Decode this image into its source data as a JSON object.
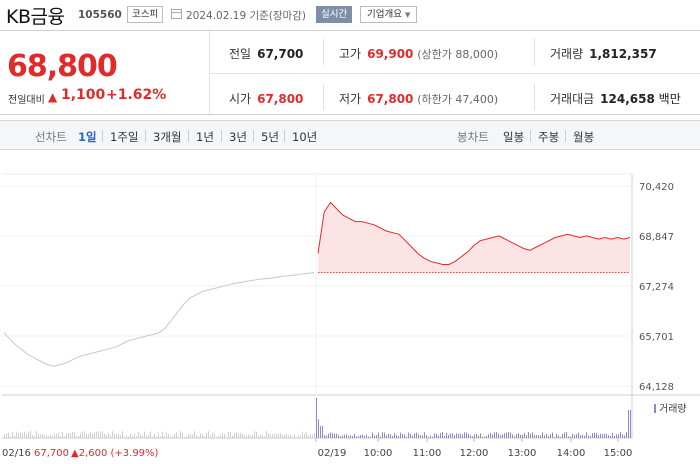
{
  "stock": {
    "name": "KB금융",
    "code": "105560",
    "market": "코스피",
    "date": "2024.02.19",
    "basis": "기준(장마감)",
    "realtime_label": "실시간",
    "company_overview_label": "기업개요"
  },
  "quote": {
    "price": "68,800",
    "change_label": "전일대비",
    "change_arrow": "▲",
    "change_value": "1,100",
    "change_percent": "+1.62%",
    "prev_close_label": "전일",
    "prev_close": "67,700",
    "high_label": "고가",
    "high": "69,900",
    "upper_limit": "(상한가 88,000)",
    "volume_label": "거래량",
    "volume": "1,812,357",
    "open_label": "시가",
    "open": "67,800",
    "low_label": "저가",
    "low": "67,800",
    "lower_limit": "(하한가 47,400)",
    "amount_label": "거래대금",
    "amount": "124,658",
    "amount_unit": "백만"
  },
  "tabs": {
    "line_chart_label": "선차트",
    "periods": [
      "1일",
      "1주일",
      "3개월",
      "1년",
      "3년",
      "5년",
      "10년"
    ],
    "active_period": "1일",
    "candle_chart_label": "봉차트",
    "candle_periods": [
      "일봉",
      "주봉",
      "월봉"
    ]
  },
  "chart_data": {
    "type": "line",
    "y_ticks": [
      "70,420",
      "68,847",
      "67,274",
      "65,701",
      "64,128"
    ],
    "ylim": [
      64128,
      70420
    ],
    "x_ticks": [
      "02/19",
      "10:00",
      "11:00",
      "12:00",
      "13:00",
      "14:00",
      "15:00"
    ],
    "prev_day_label": "02/16",
    "prev_day_close": "67,700",
    "prev_day_change": "▲2,600 (+3.99%)",
    "reference_price": 67700,
    "volume_label": "거래량",
    "colors": {
      "up": "#e12b2b",
      "prev": "#c8c8c8",
      "volume": "#8f86c6",
      "fill": "#fde4e4"
    },
    "series": [
      {
        "session": "02/16",
        "values": [
          65800,
          65600,
          65400,
          65250,
          65100,
          65000,
          64900,
          64800,
          64750,
          64800,
          64850,
          64950,
          65050,
          65100,
          65150,
          65200,
          65250,
          65300,
          65350,
          65450,
          65550,
          65600,
          65650,
          65700,
          65750,
          65800,
          65950,
          66200,
          66450,
          66700,
          66900,
          67000,
          67100,
          67150,
          67200,
          67250,
          67300,
          67350,
          67380,
          67420,
          67450,
          67480,
          67500,
          67520,
          67550,
          67580,
          67600,
          67620,
          67650,
          67670,
          67700
        ]
      },
      {
        "session": "02/19",
        "values": [
          68300,
          69600,
          69900,
          69700,
          69500,
          69400,
          69300,
          69300,
          69250,
          69200,
          69100,
          69000,
          68950,
          68900,
          68700,
          68500,
          68300,
          68150,
          68050,
          68000,
          67950,
          67950,
          68050,
          68200,
          68350,
          68550,
          68700,
          68750,
          68800,
          68850,
          68750,
          68650,
          68550,
          68450,
          68400,
          68500,
          68600,
          68700,
          68800,
          68850,
          68900,
          68850,
          68800,
          68850,
          68800,
          68750,
          68800,
          68750,
          68800,
          68750,
          68800
        ]
      }
    ]
  }
}
